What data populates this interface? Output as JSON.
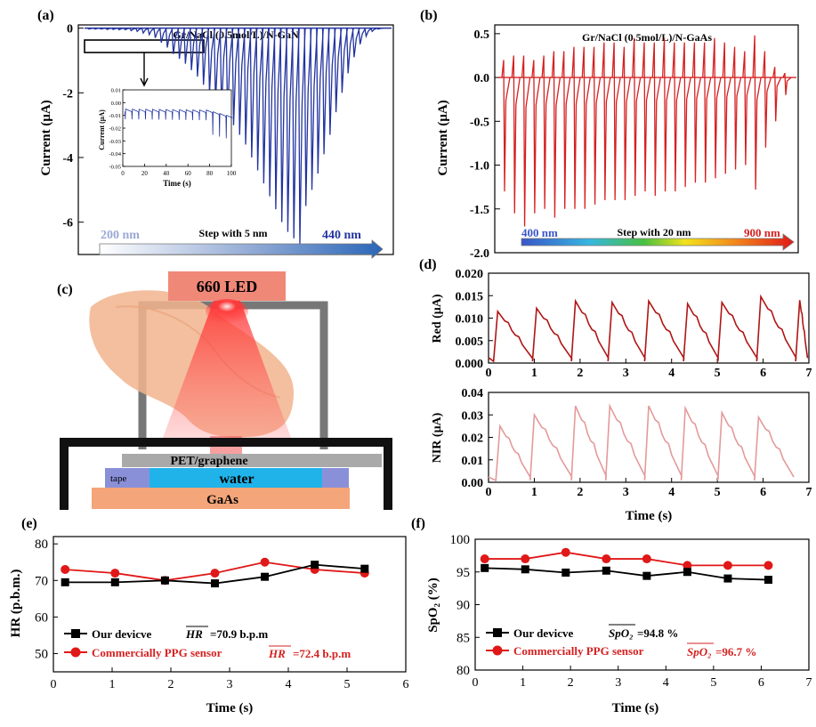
{
  "panels": {
    "a": "(a)",
    "b": "(b)",
    "c": "(c)",
    "d": "(d)",
    "e": "(e)",
    "f": "(f)"
  },
  "colors": {
    "gan": "#2233a0",
    "gaas": "#d62020",
    "red_ppg": "#b01515",
    "nir_ppg": "#e49a9a",
    "black": "#000000",
    "red_marker": "#e01818",
    "device_frame": "#777777",
    "hand": "#f2b48e",
    "led_box": "#f08878",
    "pet": "#a9a9a9",
    "water": "#1fb3ea",
    "tape": "#8a90d8",
    "gaas_layer": "#f4a57a"
  },
  "chart_data": [
    {
      "id": "a",
      "type": "line",
      "title": "Gr/NaCl (0.5mol/L)/N-GaN",
      "ylabel": "Current (μA)",
      "ylim": [
        -7,
        0.1
      ],
      "yticks": [
        0,
        -2,
        -4,
        -6
      ],
      "spike_count": 49,
      "spike_min_values": [
        -0.03,
        -0.03,
        -0.03,
        -0.04,
        -0.04,
        -0.05,
        -0.05,
        -0.08,
        -0.1,
        -0.15,
        -0.2,
        -0.3,
        -0.45,
        -0.6,
        -0.8,
        -0.95,
        -1.1,
        -1.3,
        -1.5,
        -1.75,
        -2.0,
        -2.3,
        -2.55,
        -2.8,
        -3.0,
        -3.3,
        -3.6,
        -4.0,
        -4.4,
        -4.8,
        -5.2,
        -5.6,
        -6.0,
        -6.3,
        -6.5,
        -6.7,
        -5.5,
        -5.0,
        -4.5,
        -3.9,
        -3.3,
        -2.6,
        -2.0,
        -1.4,
        -0.9,
        -0.5,
        -0.25,
        -0.1,
        -0.03
      ],
      "wavelength_bar": {
        "start": "200 nm",
        "end": "440 nm",
        "step": "Step with 5 nm"
      },
      "inset": {
        "xlabel": "Time (s)",
        "ylabel": "Current (μA)",
        "xticks": [
          "0",
          "20",
          "40",
          "60",
          "80",
          "100"
        ],
        "yticks": [
          "0.01",
          "0.00",
          "-0.01",
          "-0.02",
          "-0.03",
          "-0.04",
          "-0.05"
        ],
        "xlim": [
          0,
          100
        ],
        "ylim": [
          -0.05,
          0.01
        ]
      }
    },
    {
      "id": "b",
      "type": "line",
      "title": "Gr/NaCl (0.5mol/L)/N-GaAs",
      "ylabel": "Current (μA)",
      "ylim": [
        -2.0,
        0.6
      ],
      "yticks": [
        "0.5",
        "0.0",
        "-0.5",
        "-1.0",
        "-1.5",
        "-2.0"
      ],
      "spike_min_values": [
        -1.3,
        -1.55,
        -1.7,
        -1.55,
        -1.5,
        -1.6,
        -1.5,
        -1.5,
        -1.5,
        -1.45,
        -1.4,
        -1.4,
        -1.4,
        -1.35,
        -1.3,
        -1.35,
        -1.3,
        -1.3,
        -1.25,
        -1.2,
        -1.2,
        -1.15,
        -1.1,
        -1.05,
        -1.0,
        -1.28,
        -0.8,
        -0.5,
        -0.2
      ],
      "spike_max_values": [
        0.2,
        0.25,
        0.25,
        0.2,
        0.25,
        0.3,
        0.3,
        0.35,
        0.35,
        0.35,
        0.4,
        0.4,
        0.35,
        0.45,
        0.4,
        0.4,
        0.45,
        0.4,
        0.4,
        0.4,
        0.4,
        0.45,
        0.4,
        0.35,
        0.3,
        0.48,
        0.3,
        0.12,
        0.05
      ],
      "wavelength_bar": {
        "start": "400 nm",
        "end": "900 nm",
        "step": "Step with 20 nm"
      }
    },
    {
      "id": "d_red",
      "type": "line",
      "ylabel": "Red (μA)",
      "xlim": [
        0,
        7
      ],
      "ylim": [
        0,
        0.02
      ],
      "xticks": [
        "0",
        "1",
        "2",
        "3",
        "4",
        "5",
        "6",
        "7"
      ],
      "yticks": [
        "0.000",
        "0.005",
        "0.010",
        "0.015",
        "0.020"
      ],
      "beat_times": [
        0.15,
        1.0,
        1.85,
        2.65,
        3.45,
        4.3,
        5.05,
        5.9,
        6.75
      ],
      "beat_peaks": [
        0.0115,
        0.0122,
        0.0138,
        0.0135,
        0.0138,
        0.0132,
        0.0135,
        0.0148,
        0.014
      ]
    },
    {
      "id": "d_nir",
      "type": "line",
      "ylabel": "NIR (μA)",
      "xlabel": "Time (s)",
      "xlim": [
        0,
        7
      ],
      "ylim": [
        0,
        0.04
      ],
      "xticks": [
        "0",
        "1",
        "2",
        "3",
        "4",
        "5",
        "6",
        "7"
      ],
      "yticks": [
        "0.00",
        "0.01",
        "0.02",
        "0.03",
        "0.04"
      ],
      "beat_times": [
        0.2,
        0.95,
        1.85,
        2.6,
        3.45,
        4.25,
        5.05,
        5.85
      ],
      "beat_peaks": [
        0.025,
        0.03,
        0.034,
        0.034,
        0.034,
        0.033,
        0.031,
        0.029
      ]
    },
    {
      "id": "e",
      "type": "line",
      "xlabel": "Time (s)",
      "ylabel": "HR (p.b.m.)",
      "xlim": [
        0,
        6
      ],
      "ylim": [
        45,
        82
      ],
      "xticks": [
        "0",
        "1",
        "2",
        "3",
        "4",
        "5",
        "6"
      ],
      "yticks": [
        "80",
        "70",
        "60",
        "50"
      ],
      "x": [
        0.2,
        1.05,
        1.9,
        2.75,
        3.6,
        4.45,
        5.3
      ],
      "series": [
        {
          "name": "Our devicve",
          "values": [
            69.5,
            69.5,
            70.0,
            69.2,
            71.0,
            74.3,
            73.2
          ],
          "mean_symbol": "HR",
          "mean_text": "=70.9 b.p.m"
        },
        {
          "name": "Commercially PPG sensor",
          "values": [
            73.0,
            72.0,
            70.0,
            72.0,
            75.0,
            73.0,
            72.0
          ],
          "mean_symbol": "HR",
          "mean_text": "=72.4 b.p.m"
        }
      ]
    },
    {
      "id": "f",
      "type": "line",
      "xlabel": "Time (s)",
      "ylabel": "SpO₂ (%)",
      "xlim": [
        0,
        7
      ],
      "ylim": [
        80,
        100
      ],
      "xticks": [
        "0",
        "1",
        "2",
        "3",
        "4",
        "5",
        "6",
        "7"
      ],
      "yticks": [
        "100",
        "95",
        "90",
        "85",
        "80"
      ],
      "x": [
        0.2,
        1.05,
        1.9,
        2.75,
        3.6,
        4.45,
        5.3,
        6.15
      ],
      "series": [
        {
          "name": "Our devicve",
          "values": [
            95.6,
            95.4,
            94.9,
            95.2,
            94.4,
            95.0,
            94.0,
            93.8
          ],
          "mean_symbol": "SpO₂",
          "mean_text": "=94.8 %"
        },
        {
          "name": "Commercially PPG sensor",
          "values": [
            97.0,
            97.0,
            98.0,
            97.0,
            97.0,
            96.0,
            96.0,
            96.0
          ],
          "mean_symbol": "SpO₂",
          "mean_text": "=96.7 %"
        }
      ]
    }
  ],
  "diagram_c": {
    "led_label": "660 LED",
    "pet_label": "PET/graphene",
    "water_label": "water",
    "tape_label": "tape",
    "gaas_label": "GaAs"
  }
}
